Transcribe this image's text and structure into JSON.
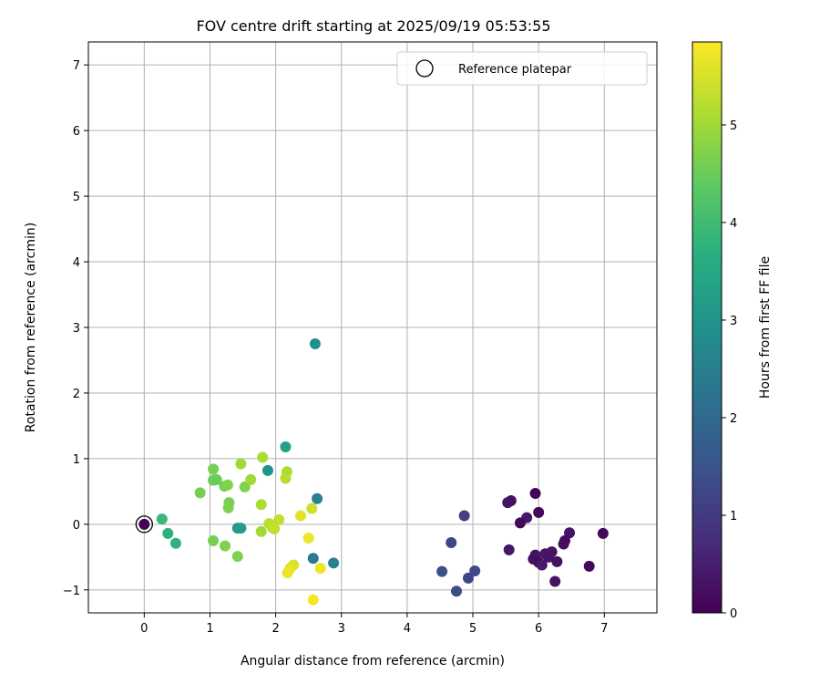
{
  "chart_data": {
    "type": "scatter",
    "title": "FOV centre drift starting at 2025/09/19 05:53:55",
    "xlabel": "Angular distance from reference (arcmin)",
    "ylabel": "Rotation from reference (arcmin)",
    "xlim": [
      -0.85,
      7.8
    ],
    "ylim": [
      -1.35,
      7.35
    ],
    "xticks": [
      0,
      1,
      2,
      3,
      4,
      5,
      6,
      7
    ],
    "yticks": [
      -1,
      0,
      1,
      2,
      3,
      4,
      5,
      6,
      7
    ],
    "grid": true,
    "legend": {
      "position": "top-right",
      "label": "Reference platepar"
    },
    "reference_point": {
      "x": 0,
      "y": 0
    },
    "colorbar": {
      "label": "Hours from first FF file",
      "min": 0,
      "max": 5.85,
      "ticks": [
        0,
        1,
        2,
        3,
        4,
        5
      ],
      "colormap": "viridis"
    },
    "points": [
      {
        "x": 5.95,
        "y": 0.47,
        "h": 0.05
      },
      {
        "x": 6.0,
        "y": 0.18,
        "h": 0.1
      },
      {
        "x": 5.58,
        "y": 0.36,
        "h": 0.25
      },
      {
        "x": 5.53,
        "y": 0.33,
        "h": 0.3
      },
      {
        "x": 5.82,
        "y": 0.1,
        "h": 0.4
      },
      {
        "x": 5.72,
        "y": 0.02,
        "h": 0.1
      },
      {
        "x": 5.55,
        "y": -0.39,
        "h": 0.35
      },
      {
        "x": 6.47,
        "y": -0.13,
        "h": 0.3
      },
      {
        "x": 6.98,
        "y": -0.14,
        "h": 0.15
      },
      {
        "x": 6.4,
        "y": -0.25,
        "h": 0.2
      },
      {
        "x": 6.38,
        "y": -0.3,
        "h": 0.2
      },
      {
        "x": 6.2,
        "y": -0.42,
        "h": 0.3
      },
      {
        "x": 6.1,
        "y": -0.45,
        "h": 0.35
      },
      {
        "x": 5.95,
        "y": -0.47,
        "h": 0.3
      },
      {
        "x": 5.92,
        "y": -0.53,
        "h": 0.25
      },
      {
        "x": 6.0,
        "y": -0.58,
        "h": 0.2
      },
      {
        "x": 6.05,
        "y": -0.62,
        "h": 0.4
      },
      {
        "x": 6.15,
        "y": -0.5,
        "h": 0.35
      },
      {
        "x": 6.28,
        "y": -0.57,
        "h": 0.3
      },
      {
        "x": 6.77,
        "y": -0.64,
        "h": 0.15
      },
      {
        "x": 6.25,
        "y": -0.87,
        "h": 0.3
      },
      {
        "x": 4.87,
        "y": 0.13,
        "h": 1.1
      },
      {
        "x": 4.67,
        "y": -0.28,
        "h": 1.25
      },
      {
        "x": 4.53,
        "y": -0.72,
        "h": 1.4
      },
      {
        "x": 4.93,
        "y": -0.82,
        "h": 1.2
      },
      {
        "x": 5.03,
        "y": -0.71,
        "h": 1.3
      },
      {
        "x": 4.75,
        "y": -1.02,
        "h": 1.35
      },
      {
        "x": 2.6,
        "y": 2.75,
        "h": 2.9
      },
      {
        "x": 2.15,
        "y": 1.18,
        "h": 3.3
      },
      {
        "x": 1.88,
        "y": 0.82,
        "h": 3.0
      },
      {
        "x": 2.63,
        "y": 0.39,
        "h": 2.6
      },
      {
        "x": 2.57,
        "y": -0.52,
        "h": 2.4
      },
      {
        "x": 2.88,
        "y": -0.59,
        "h": 2.6
      },
      {
        "x": 1.42,
        "y": -0.06,
        "h": 3.1
      },
      {
        "x": 1.47,
        "y": -0.06,
        "h": 3.2
      },
      {
        "x": 0.27,
        "y": 0.08,
        "h": 3.9
      },
      {
        "x": 0.36,
        "y": -0.14,
        "h": 3.7
      },
      {
        "x": 0.48,
        "y": -0.29,
        "h": 3.8
      },
      {
        "x": 1.05,
        "y": 0.84,
        "h": 4.6
      },
      {
        "x": 1.05,
        "y": 0.67,
        "h": 4.5
      },
      {
        "x": 1.1,
        "y": 0.68,
        "h": 4.5
      },
      {
        "x": 0.85,
        "y": 0.48,
        "h": 4.6
      },
      {
        "x": 1.22,
        "y": 0.58,
        "h": 4.6
      },
      {
        "x": 1.27,
        "y": 0.6,
        "h": 4.7
      },
      {
        "x": 1.29,
        "y": 0.33,
        "h": 4.6
      },
      {
        "x": 1.28,
        "y": 0.25,
        "h": 4.7
      },
      {
        "x": 1.05,
        "y": -0.25,
        "h": 4.6
      },
      {
        "x": 1.23,
        "y": -0.33,
        "h": 4.7
      },
      {
        "x": 1.42,
        "y": -0.49,
        "h": 4.7
      },
      {
        "x": 1.53,
        "y": 0.57,
        "h": 4.7
      },
      {
        "x": 1.47,
        "y": 0.92,
        "h": 5.0
      },
      {
        "x": 1.62,
        "y": 0.68,
        "h": 5.0
      },
      {
        "x": 1.8,
        "y": 1.02,
        "h": 5.1
      },
      {
        "x": 2.17,
        "y": 0.8,
        "h": 5.1
      },
      {
        "x": 2.15,
        "y": 0.7,
        "h": 5.2
      },
      {
        "x": 1.78,
        "y": 0.3,
        "h": 5.1
      },
      {
        "x": 1.78,
        "y": -0.11,
        "h": 5.0
      },
      {
        "x": 1.9,
        "y": 0.01,
        "h": 5.2
      },
      {
        "x": 1.95,
        "y": -0.05,
        "h": 5.3
      },
      {
        "x": 1.98,
        "y": -0.07,
        "h": 5.3
      },
      {
        "x": 2.05,
        "y": 0.07,
        "h": 5.3
      },
      {
        "x": 2.55,
        "y": 0.24,
        "h": 5.4
      },
      {
        "x": 2.38,
        "y": 0.13,
        "h": 5.6
      },
      {
        "x": 2.5,
        "y": -0.21,
        "h": 5.7
      },
      {
        "x": 2.27,
        "y": -0.62,
        "h": 5.5
      },
      {
        "x": 2.22,
        "y": -0.67,
        "h": 5.6
      },
      {
        "x": 2.18,
        "y": -0.74,
        "h": 5.7
      },
      {
        "x": 2.68,
        "y": -0.67,
        "h": 5.7
      },
      {
        "x": 2.57,
        "y": -1.15,
        "h": 5.8
      }
    ]
  }
}
